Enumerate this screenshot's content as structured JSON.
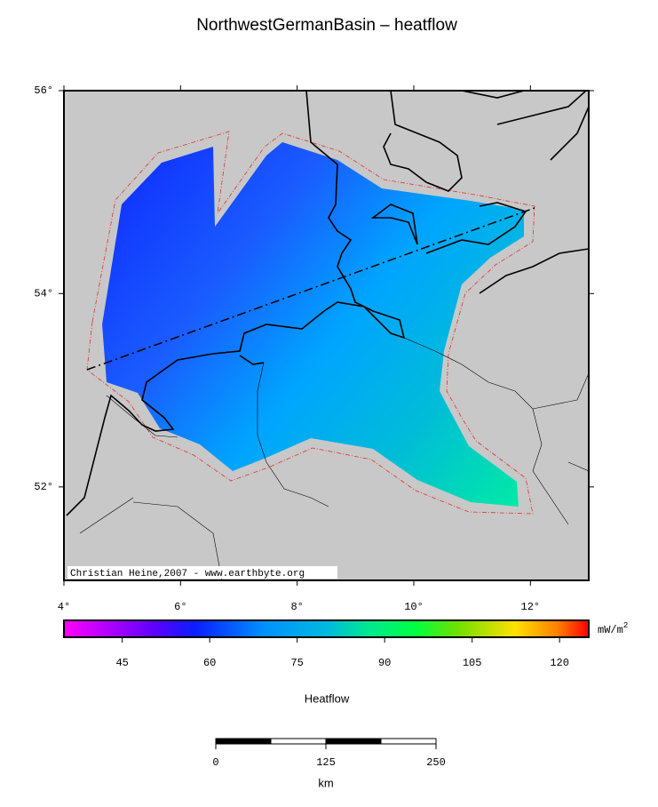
{
  "chart_data": {
    "type": "map",
    "title": "NorthwestGermanBasin – heatflow",
    "xlim": [
      4,
      13
    ],
    "ylim": [
      51,
      56
    ],
    "xticks": [
      {
        "value": 4,
        "label": "4°"
      },
      {
        "value": 6,
        "label": "6°"
      },
      {
        "value": 8,
        "label": "8°"
      },
      {
        "value": 10,
        "label": "10°"
      },
      {
        "value": 12,
        "label": "12°"
      }
    ],
    "yticks": [
      {
        "value": 52,
        "label": "52°"
      },
      {
        "value": 54,
        "label": "54°"
      },
      {
        "value": 56,
        "label": "56°"
      }
    ],
    "credit": "Christian Heine,2007 - www.earthbyte.org",
    "colorbar": {
      "label": "Heatflow",
      "unit": "mW/m",
      "unit_power": "2",
      "lim": [
        35,
        125
      ],
      "ticks": [
        45,
        60,
        75,
        90,
        105,
        120
      ]
    },
    "scalebar": {
      "label": "km",
      "lim": [
        0,
        250
      ],
      "ticks": [
        0,
        125,
        250
      ]
    }
  }
}
